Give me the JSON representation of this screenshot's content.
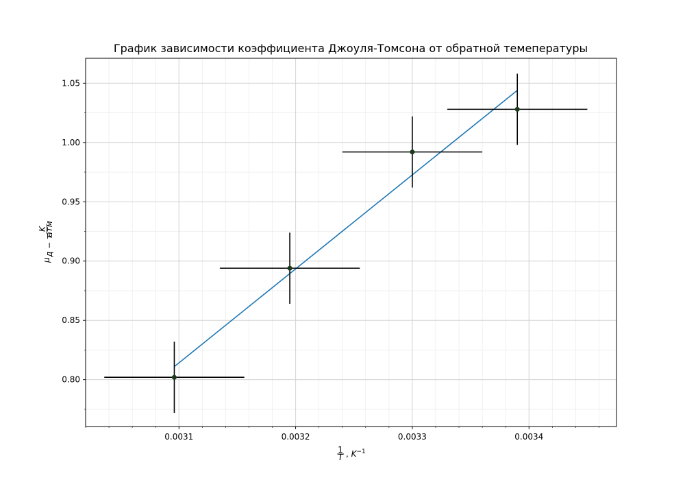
{
  "chart_data": {
    "type": "scatter",
    "title": "График зависимости коэффициента Джоуля-Томсона от обратной темепературы",
    "xlabel": "1/T, K⁻¹",
    "ylabel": "μд-т, K/атм",
    "xlim": [
      0.00302,
      0.003475
    ],
    "ylim": [
      0.7605,
      1.071
    ],
    "x_ticks": [
      0.0031,
      0.0032,
      0.0033,
      0.0034
    ],
    "x_tick_labels": [
      "0.0031",
      "0.0032",
      "0.0033",
      "0.0034"
    ],
    "y_ticks": [
      0.8,
      0.85,
      0.9,
      0.95,
      1.0,
      1.05
    ],
    "y_tick_labels": [
      "0.80",
      "0.85",
      "0.90",
      "0.95",
      "1.00",
      "1.05"
    ],
    "grid": true,
    "minor_grid": true,
    "points": [
      {
        "x": 0.003096,
        "y": 0.802,
        "xerr": 6e-05,
        "yerr": 0.03
      },
      {
        "x": 0.003195,
        "y": 0.894,
        "xerr": 6e-05,
        "yerr": 0.03
      },
      {
        "x": 0.0033,
        "y": 0.992,
        "xerr": 6e-05,
        "yerr": 0.03
      },
      {
        "x": 0.00339,
        "y": 1.028,
        "xerr": 6e-05,
        "yerr": 0.03
      }
    ],
    "fit_line": {
      "x": [
        0.003096,
        0.00339
      ],
      "y": [
        0.811,
        1.044
      ]
    },
    "colors": {
      "fit": "#1f77b4",
      "errorbar": "#000000",
      "marker": "#1a3a1a"
    }
  }
}
